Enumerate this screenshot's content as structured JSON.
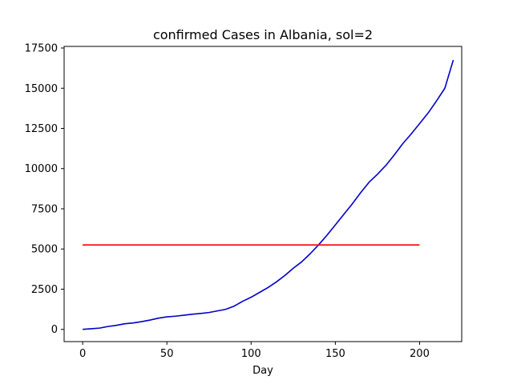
{
  "chart_data": {
    "type": "line",
    "title": "confirmed Cases in Albania, sol=2",
    "xlabel": "Day",
    "ylabel": "",
    "xlim": [
      -11,
      225
    ],
    "ylim": [
      -760,
      17600
    ],
    "xticks": [
      0,
      50,
      100,
      150,
      200
    ],
    "yticks": [
      0,
      2500,
      5000,
      7500,
      10000,
      12500,
      15000,
      17500
    ],
    "grid": false,
    "series": [
      {
        "color": "#0000cc",
        "x": [
          0,
          5,
          10,
          15,
          20,
          25,
          30,
          35,
          40,
          45,
          50,
          55,
          60,
          65,
          70,
          75,
          80,
          85,
          90,
          95,
          100,
          105,
          110,
          115,
          120,
          125,
          130,
          135,
          140,
          145,
          150,
          155,
          160,
          165,
          170,
          175,
          180,
          185,
          190,
          195,
          200,
          205,
          210,
          215,
          220
        ],
        "y": [
          0,
          40,
          80,
          180,
          250,
          350,
          400,
          480,
          580,
          700,
          780,
          820,
          880,
          940,
          990,
          1050,
          1150,
          1250,
          1450,
          1750,
          2000,
          2300,
          2600,
          2950,
          3350,
          3800,
          4200,
          4700,
          5250,
          5850,
          6500,
          7150,
          7800,
          8500,
          9150,
          9650,
          10200,
          10850,
          11550,
          12150,
          12800,
          13450,
          14200,
          15000,
          16750
        ]
      },
      {
        "color": "#ff0000",
        "x": [
          0,
          200
        ],
        "y": [
          5250,
          5250
        ]
      }
    ]
  }
}
